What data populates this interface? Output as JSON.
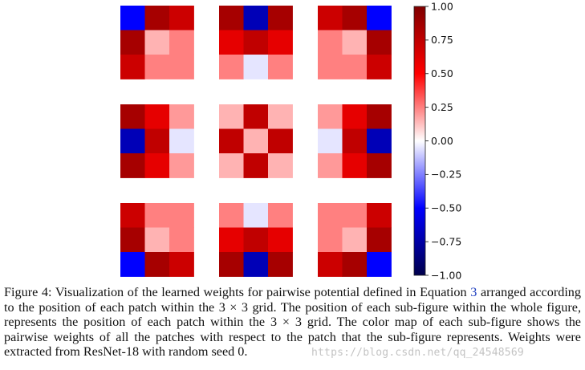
{
  "chart_data": {
    "type": "heatmap",
    "layout": "3x3 grid of 3x3 heatmaps",
    "colormap": "bwr",
    "vmin": -1.0,
    "vmax": 1.0,
    "colorbar_ticks": [
      "1.00",
      "0.75",
      "0.50",
      "0.25",
      "0.00",
      "−0.25",
      "−0.50",
      "−0.75",
      "−1.00"
    ],
    "colorbar_tick_values": [
      1.0,
      0.75,
      0.5,
      0.25,
      0.0,
      -0.25,
      -0.5,
      -0.75,
      -1.0
    ],
    "subplots": [
      {
        "position": "top-left",
        "values": [
          [
            -0.5,
            0.85,
            0.7
          ],
          [
            0.85,
            0.15,
            0.25
          ],
          [
            0.7,
            0.25,
            0.25
          ]
        ]
      },
      {
        "position": "top-center",
        "values": [
          [
            0.85,
            -0.7,
            0.85
          ],
          [
            0.6,
            0.75,
            0.6
          ],
          [
            0.25,
            -0.05,
            0.25
          ]
        ]
      },
      {
        "position": "top-right",
        "values": [
          [
            0.7,
            0.85,
            -0.5
          ],
          [
            0.25,
            0.15,
            0.85
          ],
          [
            0.25,
            0.25,
            0.7
          ]
        ]
      },
      {
        "position": "middle-left",
        "values": [
          [
            0.85,
            0.6,
            0.2
          ],
          [
            -0.7,
            0.75,
            -0.05
          ],
          [
            0.85,
            0.6,
            0.2
          ]
        ]
      },
      {
        "position": "center",
        "values": [
          [
            0.15,
            0.75,
            0.15
          ],
          [
            0.75,
            0.15,
            0.75
          ],
          [
            0.15,
            0.75,
            0.15
          ]
        ]
      },
      {
        "position": "middle-right",
        "values": [
          [
            0.2,
            0.6,
            0.85
          ],
          [
            -0.05,
            0.75,
            -0.7
          ],
          [
            0.2,
            0.6,
            0.85
          ]
        ]
      },
      {
        "position": "bottom-left",
        "values": [
          [
            0.7,
            0.25,
            0.25
          ],
          [
            0.85,
            0.15,
            0.25
          ],
          [
            -0.5,
            0.85,
            0.7
          ]
        ]
      },
      {
        "position": "bottom-center",
        "values": [
          [
            0.25,
            -0.05,
            0.25
          ],
          [
            0.6,
            0.75,
            0.6
          ],
          [
            0.85,
            -0.7,
            0.85
          ]
        ]
      },
      {
        "position": "bottom-right",
        "values": [
          [
            0.25,
            0.25,
            0.7
          ],
          [
            0.25,
            0.15,
            0.85
          ],
          [
            0.7,
            0.85,
            -0.5
          ]
        ]
      }
    ]
  },
  "caption": {
    "part1": "Figure 4: Visualization of the learned weights for pairwise potential defined in Equation ",
    "ref": "3",
    "part2": " arranged according to the position of each patch within the 3 × 3 grid. The position of each sub-figure within the whole figure, represents the position of each patch within the 3 × 3 grid. The color map of each sub-figure shows the pairwise weights of all the patches with respect to the patch that the sub-figure represents. Weights were extracted from ResNet-18 with random seed 0."
  },
  "watermark": "https://blog.csdn.net/qq_24548569"
}
